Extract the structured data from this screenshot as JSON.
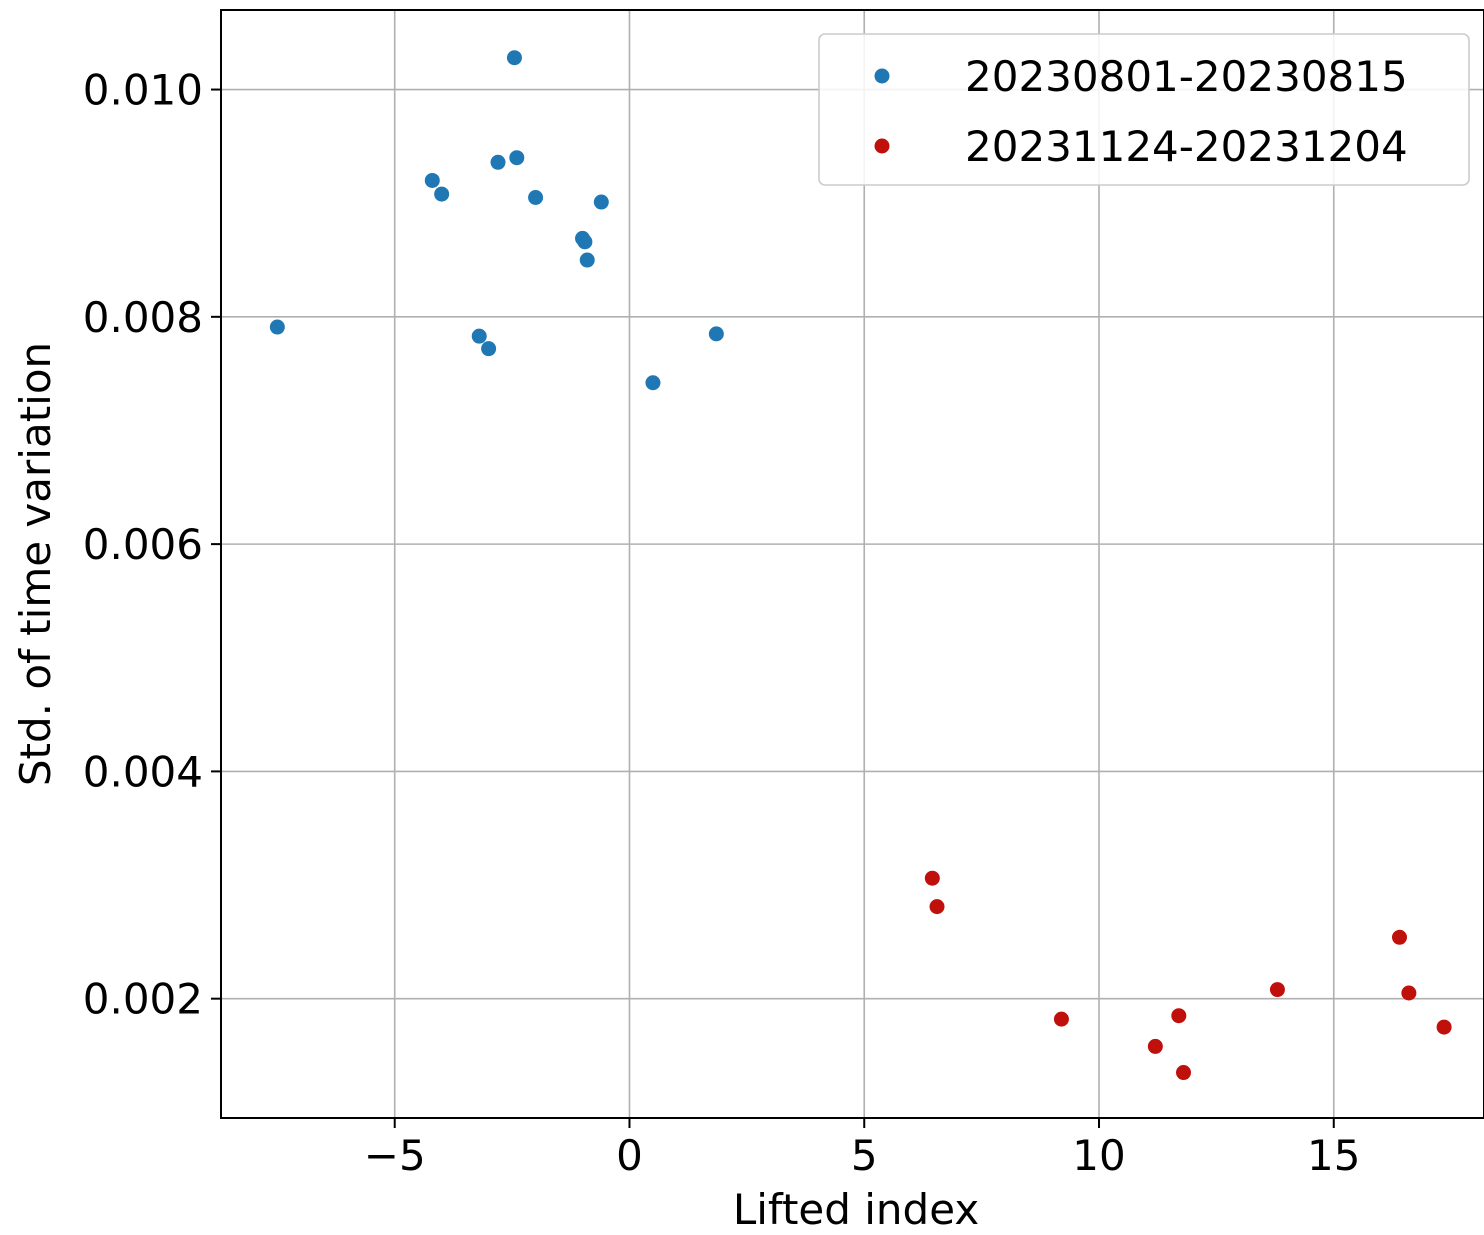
{
  "chart_data": {
    "type": "scatter",
    "title": "",
    "xlabel": "Lifted index",
    "ylabel": "Std. of time variation",
    "xlim": [
      -8.7,
      18.2
    ],
    "ylim": [
      0.00095,
      0.0107
    ],
    "xticks": [
      -5,
      0,
      5,
      10,
      15
    ],
    "xtick_labels": [
      "−5",
      "0",
      "5",
      "10",
      "15"
    ],
    "yticks": [
      0.002,
      0.004,
      0.006,
      0.008,
      0.01
    ],
    "ytick_labels": [
      "0.002",
      "0.004",
      "0.006",
      "0.008",
      "0.010"
    ],
    "grid": true,
    "legend_position": "top-right",
    "series": [
      {
        "name": "20230801-20230815",
        "color": "#1f77b4",
        "points": [
          {
            "x": -7.5,
            "y": 0.00791
          },
          {
            "x": -4.2,
            "y": 0.0092
          },
          {
            "x": -4.0,
            "y": 0.00908
          },
          {
            "x": -3.2,
            "y": 0.00783
          },
          {
            "x": -3.0,
            "y": 0.00772
          },
          {
            "x": -2.8,
            "y": 0.00936
          },
          {
            "x": -2.45,
            "y": 0.01028
          },
          {
            "x": -2.4,
            "y": 0.0094
          },
          {
            "x": -2.0,
            "y": 0.00905
          },
          {
            "x": -1.0,
            "y": 0.00869
          },
          {
            "x": -0.95,
            "y": 0.00866
          },
          {
            "x": -0.9,
            "y": 0.0085
          },
          {
            "x": -0.6,
            "y": 0.00901
          },
          {
            "x": 0.5,
            "y": 0.00742
          },
          {
            "x": 1.85,
            "y": 0.00785
          }
        ]
      },
      {
        "name": "20231124-20231204",
        "color": "#c0100c",
        "points": [
          {
            "x": 6.45,
            "y": 0.00306
          },
          {
            "x": 6.55,
            "y": 0.00281
          },
          {
            "x": 9.2,
            "y": 0.00182
          },
          {
            "x": 11.2,
            "y": 0.00158
          },
          {
            "x": 11.7,
            "y": 0.00185
          },
          {
            "x": 11.8,
            "y": 0.00135
          },
          {
            "x": 13.8,
            "y": 0.00208
          },
          {
            "x": 16.4,
            "y": 0.00254
          },
          {
            "x": 16.6,
            "y": 0.00205
          },
          {
            "x": 17.35,
            "y": 0.00175
          }
        ]
      }
    ]
  }
}
